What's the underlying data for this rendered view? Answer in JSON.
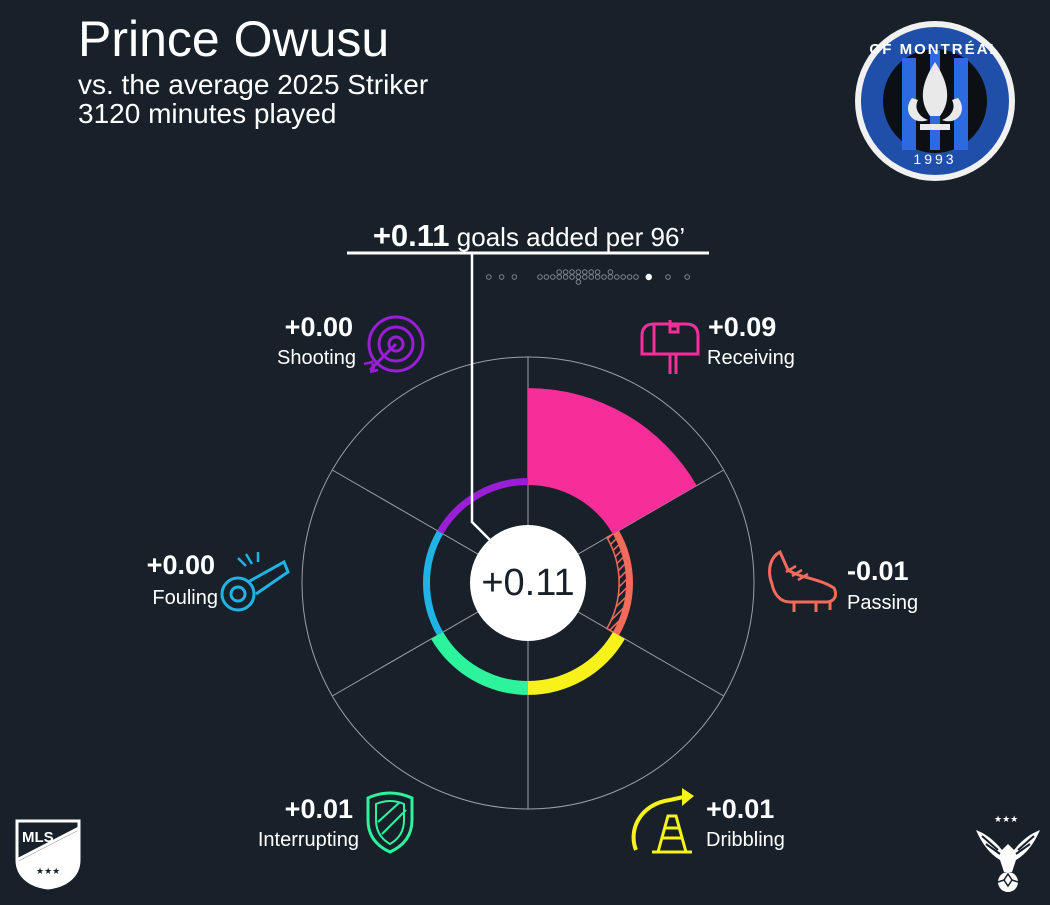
{
  "header": {
    "title": "Prince Owusu",
    "subtitle_line1": "vs. the average 2025 Striker",
    "subtitle_line2": "3120 minutes played"
  },
  "headline": {
    "value": "+0.11",
    "text": "goals added per 96’"
  },
  "center_value": "+0.11",
  "categories": [
    {
      "key": "receiving",
      "label": "Receiving",
      "value_text": "+0.09",
      "color": "#f72e9a",
      "icon": "mailbox-icon"
    },
    {
      "key": "passing",
      "label": "Passing",
      "value_text": "-0.01",
      "color": "#f26b5b",
      "icon": "cleat-icon"
    },
    {
      "key": "dribbling",
      "label": "Dribbling",
      "value_text": "+0.01",
      "color": "#f6f21a",
      "icon": "traffic-cone-icon"
    },
    {
      "key": "interrupting",
      "label": "Interrupting",
      "value_text": "+0.01",
      "color": "#2ef39d",
      "icon": "shield-icon"
    },
    {
      "key": "fouling",
      "label": "Fouling",
      "value_text": "+0.00",
      "color": "#1fb3e6",
      "icon": "whistle-icon"
    },
    {
      "key": "shooting",
      "label": "Shooting",
      "value_text": "+0.00",
      "color": "#9a1ed6",
      "icon": "target-icon"
    }
  ],
  "club_logo": {
    "text_top": "CF MONTRÉAL",
    "text_bottom": "1993",
    "color": "#1f4fa8"
  },
  "league_logo": {
    "text": "MLS"
  },
  "chart_data": {
    "type": "polar-bar",
    "title": "Prince Owusu",
    "total": 0.11,
    "categories": [
      "Receiving",
      "Passing",
      "Dribbling",
      "Interrupting",
      "Fouling",
      "Shooting"
    ],
    "values": [
      0.09,
      -0.01,
      0.01,
      0.01,
      0.0,
      0.0
    ],
    "rlim": [
      -0.04,
      0.12
    ],
    "baseline": 0.0,
    "league_distribution_total_approx": [
      -0.14,
      -0.12,
      -0.1,
      -0.06,
      -0.05,
      -0.04,
      -0.03,
      -0.03,
      -0.02,
      -0.02,
      -0.01,
      -0.01,
      0.0,
      0.0,
      0.0,
      0.01,
      0.01,
      0.02,
      0.02,
      0.03,
      0.03,
      0.04,
      0.05,
      0.05,
      0.06,
      0.07,
      0.08,
      0.09,
      0.11,
      0.14,
      0.17
    ]
  }
}
